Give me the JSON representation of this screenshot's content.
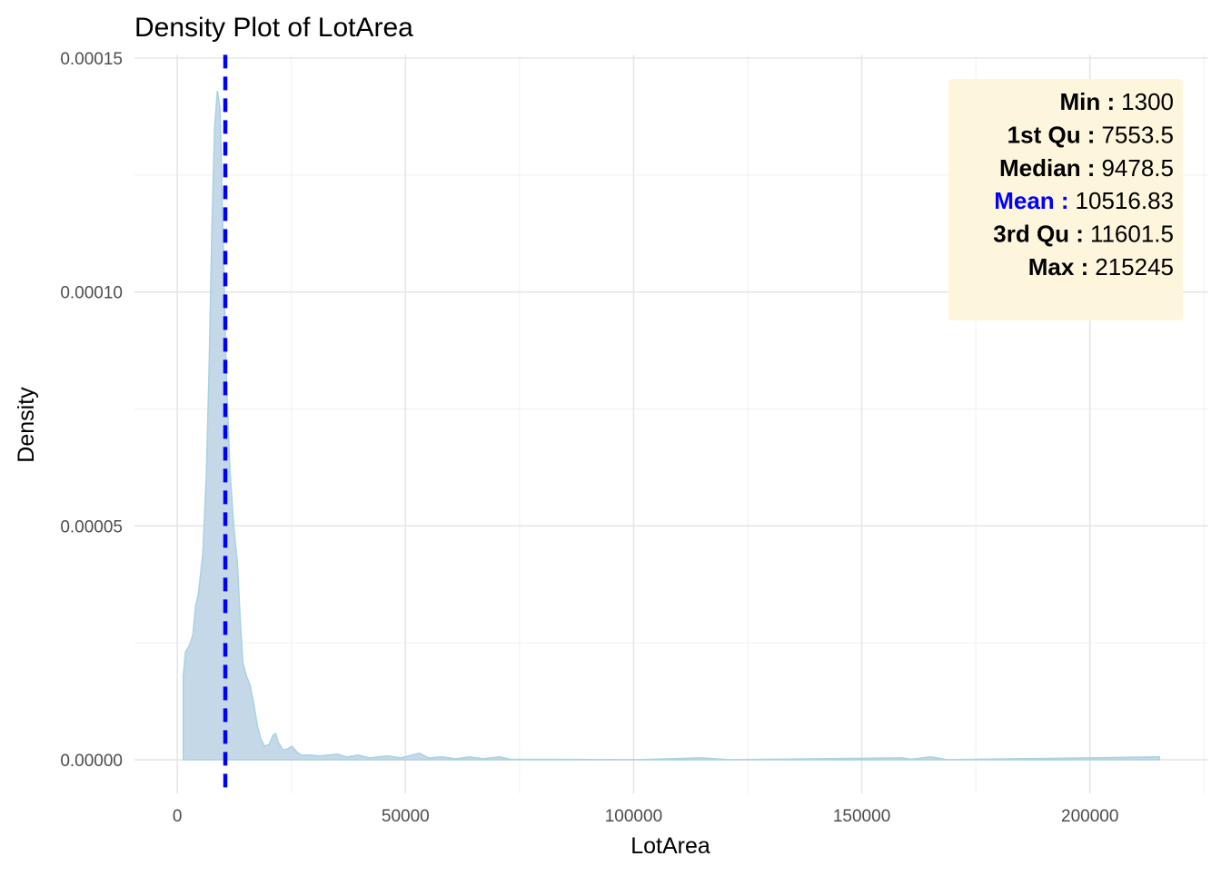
{
  "chart_data": {
    "type": "area",
    "title": "Density Plot of LotArea",
    "x_label": "LotArea",
    "y_label": "Density",
    "x": [
      1300,
      1795,
      2593,
      3390,
      3988,
      4587,
      5584,
      6382,
      6980,
      7578,
      8177,
      8775,
      9373,
      9971,
      10769,
      11567,
      12365,
      13162,
      13761,
      14359,
      15157,
      15954,
      16752,
      17550,
      18348,
      19146,
      20143,
      20941,
      21539,
      22138,
      23135,
      24132,
      25129,
      26126,
      27124,
      29118,
      31112,
      33107,
      35101,
      37095,
      39688,
      42081,
      46070,
      49062,
      53050,
      55045,
      58036,
      61028,
      64019,
      67011,
      70601,
      72995,
      100916,
      114877,
      120860,
      158753,
      160748,
      165135,
      168725,
      215245
    ],
    "values": [
      1.79e-05,
      2.31e-05,
      2.43e-05,
      2.66e-05,
      3.28e-05,
      3.53e-05,
      4.4e-05,
      6.15e-05,
      8.48e-05,
      0.0001139,
      0.0001353,
      0.000143,
      0.0001391,
      0.0001139,
      8.09e-05,
      6.15e-05,
      4.99e-05,
      4.21e-05,
      3.05e-05,
      2.08e-05,
      1.79e-05,
      1.59e-05,
      1.2e-05,
      7.2e-06,
      4.3e-06,
      2.9e-06,
      3.3e-06,
      5.2e-06,
      5.6e-06,
      3.7e-06,
      2.1e-06,
      2.3e-06,
      2.9e-06,
      1.7e-06,
      1e-06,
      1e-06,
      8e-07,
      1e-06,
      1.2e-06,
      6e-07,
      1e-06,
      4e-07,
      8e-07,
      4e-07,
      1.4e-06,
      4e-07,
      6e-07,
      2e-07,
      6e-07,
      2e-07,
      6e-07,
      1e-07,
      0,
      4e-07,
      0,
      4e-07,
      1e-07,
      6e-07,
      0,
      6e-07
    ],
    "color": "#c5d8e8",
    "line_color": "#a9d2e3",
    "xlim": [
      -9397.25,
      225942.25
    ],
    "ylim": [
      -7.2e-06,
      0.0001507
    ],
    "xticks": [
      0,
      50000,
      100000,
      150000,
      200000
    ],
    "x_minor_ticks": [
      25000,
      75000,
      125000,
      175000,
      225000
    ],
    "yticks": [
      {
        "value": 0,
        "label": "0.00000"
      },
      {
        "value": 5e-05,
        "label": "0.00005"
      },
      {
        "value": 0.0001,
        "label": "0.00010"
      },
      {
        "value": 0.00015,
        "label": "0.00015"
      }
    ],
    "y_minor_ticks": [
      2.5e-05,
      7.5e-05,
      0.000125
    ],
    "grid": true,
    "stats": [
      {
        "label": "Min :",
        "value": 1300
      },
      {
        "label": "1st Qu :",
        "value": 7553.5
      },
      {
        "label": "Median :",
        "value": 9478.5
      },
      {
        "label": "Mean :",
        "value": 10516.83,
        "color": "#0000ff"
      },
      {
        "label": "3rd Qu :",
        "value": 11601.5
      },
      {
        "label": "Max :",
        "value": 215245
      }
    ],
    "stats_box_color": "#fdf6dd"
  }
}
